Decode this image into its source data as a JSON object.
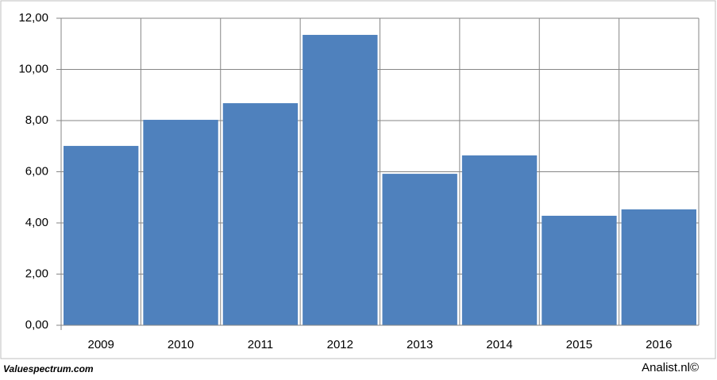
{
  "chart_data": {
    "type": "bar",
    "categories": [
      "2009",
      "2010",
      "2011",
      "2012",
      "2013",
      "2014",
      "2015",
      "2016"
    ],
    "values": [
      7.01,
      8.03,
      8.68,
      11.35,
      5.92,
      6.64,
      4.28,
      4.53
    ],
    "color": "#4f81bd",
    "ylim": [
      0,
      12
    ],
    "yticks": [
      {
        "value": 0,
        "label": "0,00"
      },
      {
        "value": 2,
        "label": "2,00"
      },
      {
        "value": 4,
        "label": "4,00"
      },
      {
        "value": 6,
        "label": "6,00"
      },
      {
        "value": 8,
        "label": "8,00"
      },
      {
        "value": 10,
        "label": "10,00"
      },
      {
        "value": 12,
        "label": "12,00"
      }
    ],
    "grid": true,
    "source": "Valuespectrum.com",
    "credit": "Analist.nl©"
  }
}
